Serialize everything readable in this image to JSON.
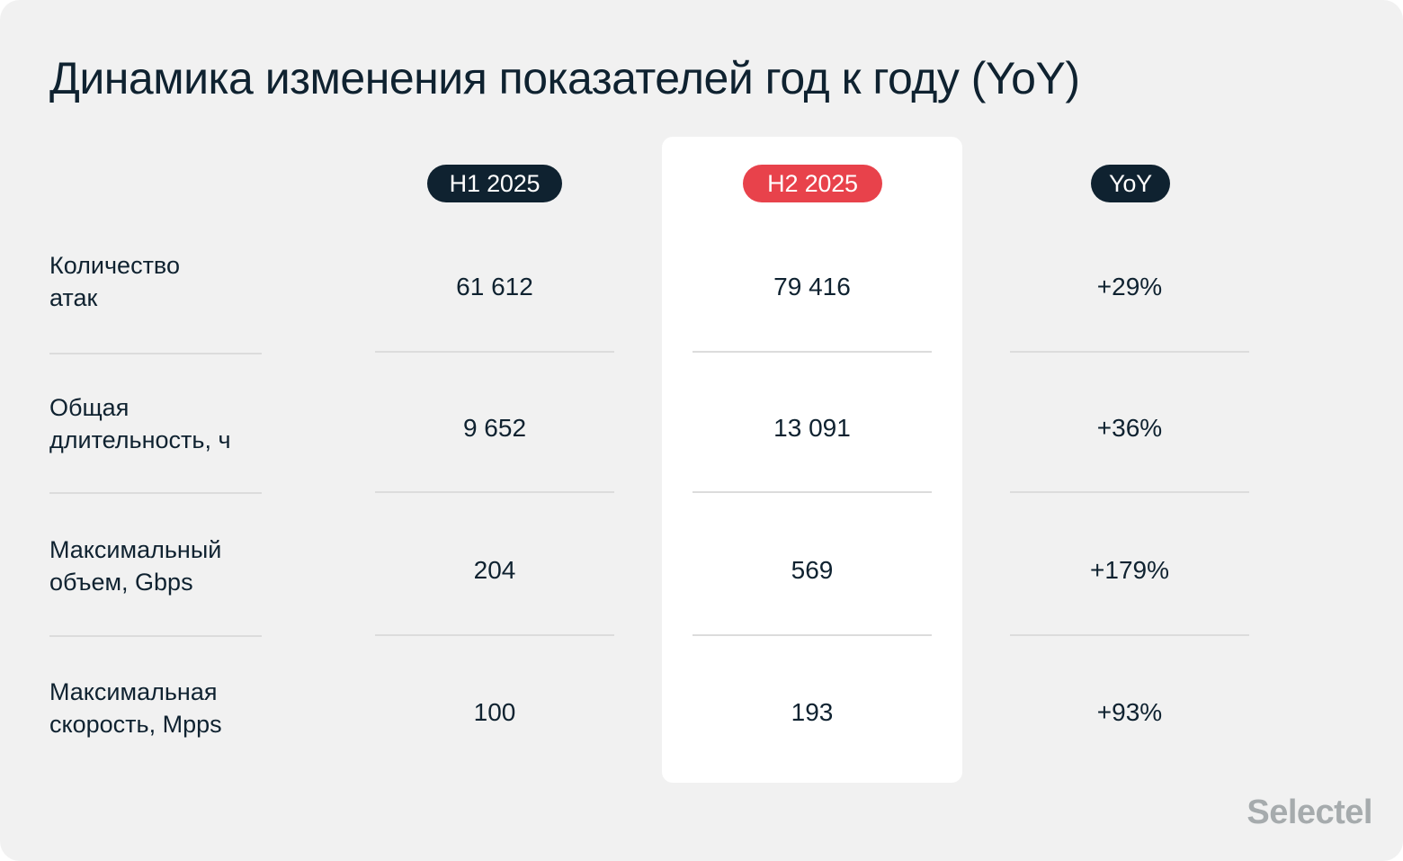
{
  "title": "Динамика изменения показателей год к году (YoY)",
  "chart_data": {
    "type": "table",
    "columns": [
      "H1 2025",
      "H2 2025",
      "YoY"
    ],
    "rows": [
      {
        "label_lines": [
          "Количество",
          "атак"
        ],
        "values": [
          "61 612",
          "79 416",
          "+29%"
        ]
      },
      {
        "label_lines": [
          "Общая",
          "длительность, ч"
        ],
        "values": [
          "9 652",
          "13 091",
          "+36%"
        ]
      },
      {
        "label_lines": [
          "Максимальный",
          "объем, Gbps"
        ],
        "values": [
          "204",
          "569",
          "+179%"
        ]
      },
      {
        "label_lines": [
          "Максимальная",
          "скорость, Mpps"
        ],
        "values": [
          "100",
          "193",
          "+93%"
        ]
      }
    ],
    "highlighted_column": "H2 2025"
  },
  "colors": {
    "background": "#f1f1f1",
    "text": "#0f2230",
    "pill_dark": "#0f2230",
    "pill_accent": "#e8424b",
    "highlight_column": "#ffffff",
    "divider": "#dcdcdc",
    "logo": "#a6abad"
  },
  "brand": {
    "logo_text": "Selectel"
  }
}
